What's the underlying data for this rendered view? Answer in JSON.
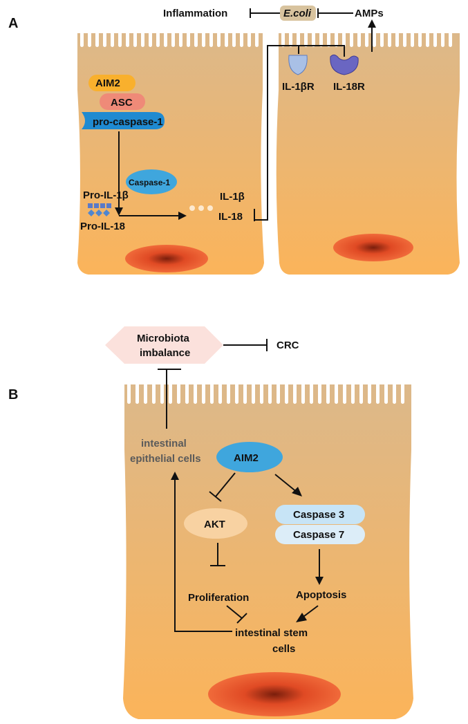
{
  "panel_a": {
    "label": "A",
    "top": {
      "inflammation": "Inflammation",
      "ecoli": "E.coli",
      "amps": "AMPs"
    },
    "left_cell": {
      "aim2": "AIM2",
      "asc": "ASC",
      "pro_caspase": "pro-caspase-1",
      "caspase1": "Caspase-1",
      "pro_il1b": "Pro-IL-1β",
      "pro_il18": "Pro-IL-18",
      "il1b": "IL-1β",
      "il18": "IL-18"
    },
    "right_cell": {
      "il1br": "IL-1βR",
      "il18r": "IL-18R"
    }
  },
  "panel_b": {
    "label": "B",
    "microbiota_line1": "Microbiota",
    "microbiota_line2": "imbalance",
    "crc": "CRC",
    "iec_line1": "intestinal",
    "iec_line2": "epithelial cells",
    "aim2": "AIM2",
    "akt": "AKT",
    "caspase3": "Caspase 3",
    "caspase7": "Caspase 7",
    "proliferation": "Proliferation",
    "apoptosis": "Apoptosis",
    "isc_line1": "intestinal stem",
    "isc_line2": "cells"
  },
  "colors": {
    "cell_top": "#dcb88a",
    "cell_bottom": "#fbb45a",
    "nucleus": "#e8502a",
    "aim2": "#f9b02d",
    "asc": "#ef8a78",
    "caspase_blue": "#3fa6dd",
    "receptor_light": "#9fb8e0",
    "receptor_dark": "#5a5ab0",
    "akt": "#f8d2a2",
    "caspase_light": "#c7e4f6",
    "microbiota": "#fbe1dc",
    "ecoli_bg": "#d8c39e"
  }
}
